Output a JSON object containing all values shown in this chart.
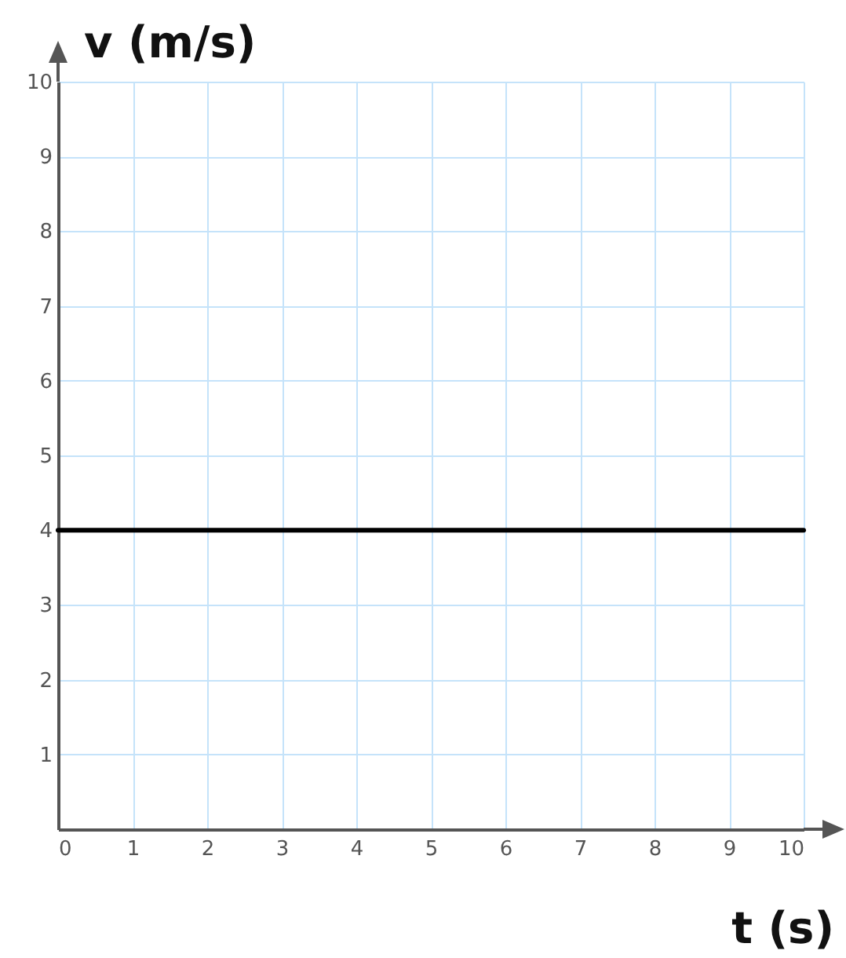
{
  "chart_data": {
    "type": "line",
    "xlabel": "t (s)",
    "ylabel": "v (m/s)",
    "x": [
      0,
      10
    ],
    "series": [
      {
        "color": "#000000",
        "values": [
          4,
          4
        ]
      }
    ],
    "xlim": [
      0,
      10
    ],
    "ylim": [
      0,
      10
    ],
    "xticks": [
      0,
      1,
      2,
      3,
      4,
      5,
      6,
      7,
      8,
      9,
      10
    ],
    "yticks": [
      1,
      2,
      3,
      4,
      5,
      6,
      7,
      8,
      9,
      10
    ],
    "grid": true,
    "marker": "none",
    "line_style": "solid"
  }
}
